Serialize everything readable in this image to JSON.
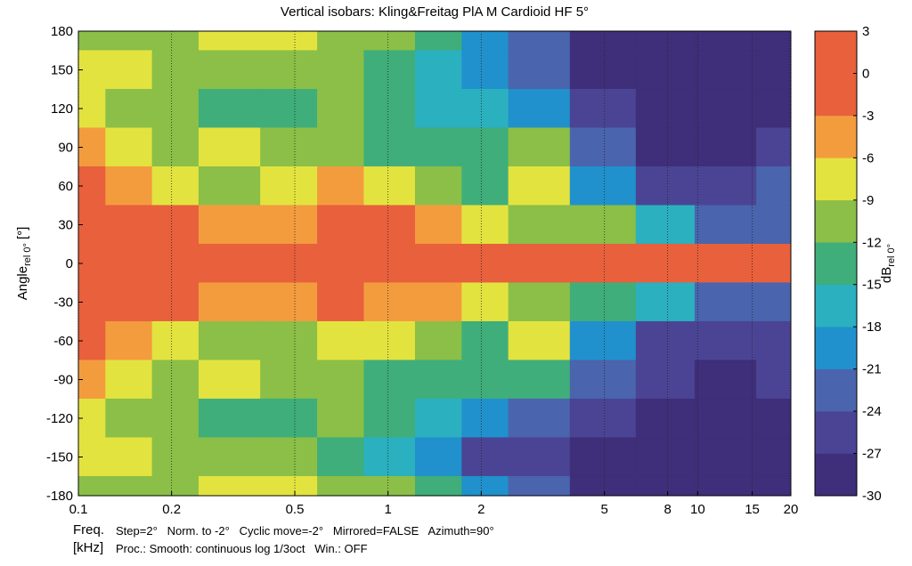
{
  "chart_data": {
    "type": "contour",
    "title": "Vertical isobars: Kling&Freitag  PlA M  Cardioid HF 5°",
    "y_label": {
      "main": "Angle",
      "sub": "rel 0°",
      "unit": "[°]"
    },
    "colorbar_label": {
      "main": "dB",
      "sub": "rel 0°"
    },
    "x_label": [
      "Freq.",
      "[kHz]"
    ],
    "info": [
      "Step=2°   Norm. to -2°   Cyclic move=-2°   Mirrored=FALSE   Azimuth=90°",
      "Proc.: Smooth: continuous log 1/3oct   Win.: OFF"
    ],
    "log_x": true,
    "grid": true,
    "xlim": [
      0.1,
      20
    ],
    "xticks": [
      0.1,
      0.2,
      0.5,
      1,
      2,
      5,
      8,
      10,
      15,
      20
    ],
    "ylim": [
      -180,
      180
    ],
    "yticks": [
      180,
      150,
      120,
      90,
      60,
      30,
      0,
      -30,
      -60,
      -90,
      -120,
      -150,
      -180
    ],
    "x": [
      0.1,
      0.15,
      0.2,
      0.3,
      0.5,
      0.7,
      1,
      1.5,
      2,
      3,
      5,
      8,
      12,
      20
    ],
    "angles": [
      180,
      150,
      120,
      90,
      60,
      30,
      0,
      -30,
      -60,
      -90,
      -120,
      -150,
      -180
    ],
    "values": [
      [
        -10,
        -10,
        -10,
        -8,
        -9,
        -10,
        -10,
        -14,
        -20,
        -24,
        -28,
        -29,
        -29,
        -29
      ],
      [
        -9,
        -9,
        -10,
        -12,
        -11,
        -10,
        -13,
        -16,
        -20,
        -24,
        -28,
        -28,
        -28,
        -28
      ],
      [
        -7,
        -10,
        -11,
        -13,
        -14,
        -12,
        -15,
        -16,
        -18,
        -20,
        -27,
        -28,
        -28,
        -28
      ],
      [
        -6,
        -8,
        -10,
        -7,
        -10,
        -12,
        -13,
        -15,
        -14,
        -12,
        -24,
        -28,
        -28,
        -27
      ],
      [
        -3,
        -5,
        -8,
        -10,
        -9,
        -6,
        -7,
        -12,
        -13,
        -8,
        -20,
        -27,
        -27,
        -24
      ],
      [
        -1,
        -2,
        -3,
        -4,
        -5,
        -3,
        -2,
        -5,
        -8,
        -10,
        -12,
        -18,
        -22,
        -24
      ],
      [
        0,
        0,
        0,
        0,
        0,
        0,
        0,
        0,
        0,
        0,
        -1,
        -1,
        -2,
        -2
      ],
      [
        -1,
        -2,
        -3,
        -4,
        -5,
        -3,
        -4,
        -6,
        -9,
        -11,
        -13,
        -18,
        -22,
        -24
      ],
      [
        -3,
        -5,
        -8,
        -10,
        -10,
        -7,
        -8,
        -12,
        -13,
        -9,
        -20,
        -26,
        -27,
        -26
      ],
      [
        -6,
        -8,
        -10,
        -9,
        -11,
        -12,
        -13,
        -15,
        -14,
        -13,
        -24,
        -27,
        -28,
        -27
      ],
      [
        -8,
        -10,
        -11,
        -13,
        -14,
        -12,
        -15,
        -16,
        -19,
        -22,
        -27,
        -28,
        -28,
        -28
      ],
      [
        -9,
        -9,
        -10,
        -12,
        -11,
        -13,
        -16,
        -20,
        -25,
        -26,
        -28,
        -28,
        -28,
        -28
      ],
      [
        -10,
        -10,
        -10,
        -9,
        -9,
        -10,
        -10,
        -14,
        -20,
        -24,
        -28,
        -29,
        -29,
        -29
      ]
    ],
    "levels": [
      -30,
      -27,
      -24,
      -21,
      -18,
      -15,
      -12,
      -9,
      -6,
      -3,
      3
    ],
    "colors": [
      "#3f2f7a",
      "#4b4494",
      "#4a64ad",
      "#2091cc",
      "#2bb0c0",
      "#3fae7a",
      "#8bbf47",
      "#e3e340",
      "#f39c3e",
      "#e8603c"
    ],
    "clim": [
      -30,
      3
    ],
    "cticks": [
      3,
      0,
      -3,
      -6,
      -9,
      -12,
      -15,
      -18,
      -21,
      -24,
      -27,
      -30
    ]
  }
}
